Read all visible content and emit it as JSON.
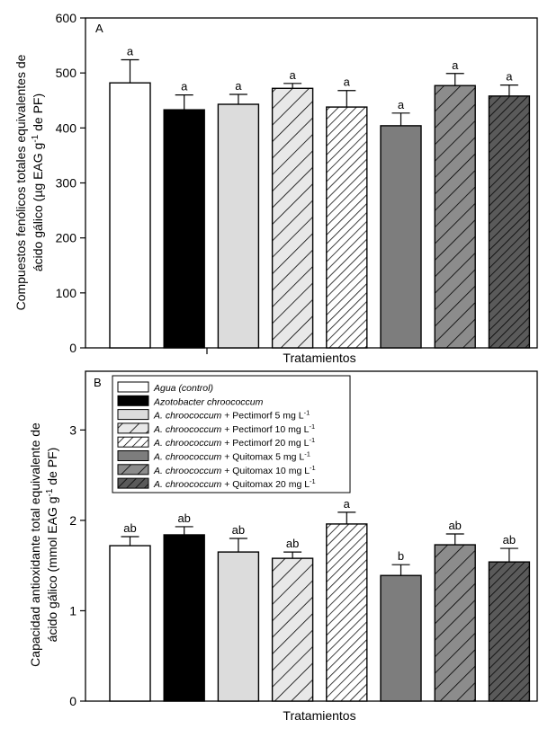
{
  "chart_data": [
    {
      "type": "bar",
      "panel_label": "A",
      "title": "",
      "xlabel": "Tratamientos",
      "ylabel_lines": [
        "Compuestos fenólicos totales equivalentes de",
        "ácido gálico (µg EAG g",
        "-1",
        " de PF)"
      ],
      "ylim": [
        0,
        600
      ],
      "yticks": [
        0,
        100,
        200,
        300,
        400,
        500,
        600
      ],
      "categories": [
        "Agua (control)",
        "Azotobacter chroococcum",
        "A. chroococcum + Pectimorf 5 mg L-1",
        "A. chroococcum + Pectimorf 10 mg L-1",
        "A. chroococcum + Pectimorf 20 mg L-1",
        "A. chroococcum + Quitomax 5 mg L-1",
        "A. chroococcum + Quitomax 10 mg L-1",
        "A. chroococcum + Quitomax 20 mg L-1"
      ],
      "values": [
        482,
        433,
        443,
        472,
        438,
        404,
        477,
        458
      ],
      "errors": [
        42,
        27,
        18,
        9,
        30,
        23,
        22,
        20
      ],
      "significance": [
        "a",
        "a",
        "a",
        "a",
        "a",
        "a",
        "a",
        "a"
      ]
    },
    {
      "type": "bar",
      "panel_label": "B",
      "title": "",
      "xlabel": "Tratamientos",
      "ylabel_lines": [
        "Capacidad antioxidante total equivalente de",
        "ácido gálico (mmol EAG g",
        "-1",
        " de PF)"
      ],
      "ylim": [
        0,
        3.65
      ],
      "yticks": [
        0,
        1,
        2,
        3
      ],
      "categories": [
        "Agua (control)",
        "Azotobacter chroococcum",
        "A. chroococcum + Pectimorf 5 mg L-1",
        "A. chroococcum + Pectimorf 10 mg L-1",
        "A. chroococcum + Pectimorf 20 mg L-1",
        "A. chroococcum + Quitomax 5 mg L-1",
        "A. chroococcum + Quitomax 10 mg L-1",
        "A. chroococcum + Quitomax 20 mg L-1"
      ],
      "values": [
        1.72,
        1.84,
        1.65,
        1.58,
        1.96,
        1.39,
        1.73,
        1.54
      ],
      "errors": [
        0.1,
        0.09,
        0.15,
        0.07,
        0.13,
        0.12,
        0.12,
        0.15
      ],
      "significance": [
        "ab",
        "ab",
        "ab",
        "ab",
        "a",
        "b",
        "ab",
        "ab"
      ]
    }
  ],
  "legend": [
    {
      "italic": "Agua (control)",
      "rest": "",
      "pattern": "white"
    },
    {
      "italic": "Azotobacter chroococcum",
      "rest": "",
      "pattern": "black"
    },
    {
      "italic": "A. chroococcum",
      "rest": " + Pectimorf 5 mg L",
      "sup": "-1",
      "pattern": "lightgray"
    },
    {
      "italic": "A. chroococcum",
      "rest": " + Pectimorf 10 mg L",
      "sup": "-1",
      "pattern": "hatch-light-wide"
    },
    {
      "italic": "A. chroococcum",
      "rest": " + Pectimorf 20 mg L",
      "sup": "-1",
      "pattern": "hatch-white-dense"
    },
    {
      "italic": "A. chroococcum",
      "rest": " + Quitomax 5 mg L",
      "sup": "-1",
      "pattern": "darkgray"
    },
    {
      "italic": "A. chroococcum",
      "rest": " + Quitomax 10 mg L",
      "sup": "-1",
      "pattern": "hatch-gray-wide"
    },
    {
      "italic": "A. chroococcum",
      "rest": " + Quitomax 20 mg L",
      "sup": "-1",
      "pattern": "hatch-dark-dense"
    }
  ],
  "colors": {
    "axis": "#000000",
    "white_fill": "#ffffff",
    "black_fill": "#000000",
    "lightgray_fill": "#dcdcdc",
    "darkgray_fill": "#7d7d7d",
    "hatch_light_bg": "#e8e8e8",
    "hatch_gray_bg": "#8c8c8c",
    "hatch_dark_bg": "#5a5a5a"
  }
}
